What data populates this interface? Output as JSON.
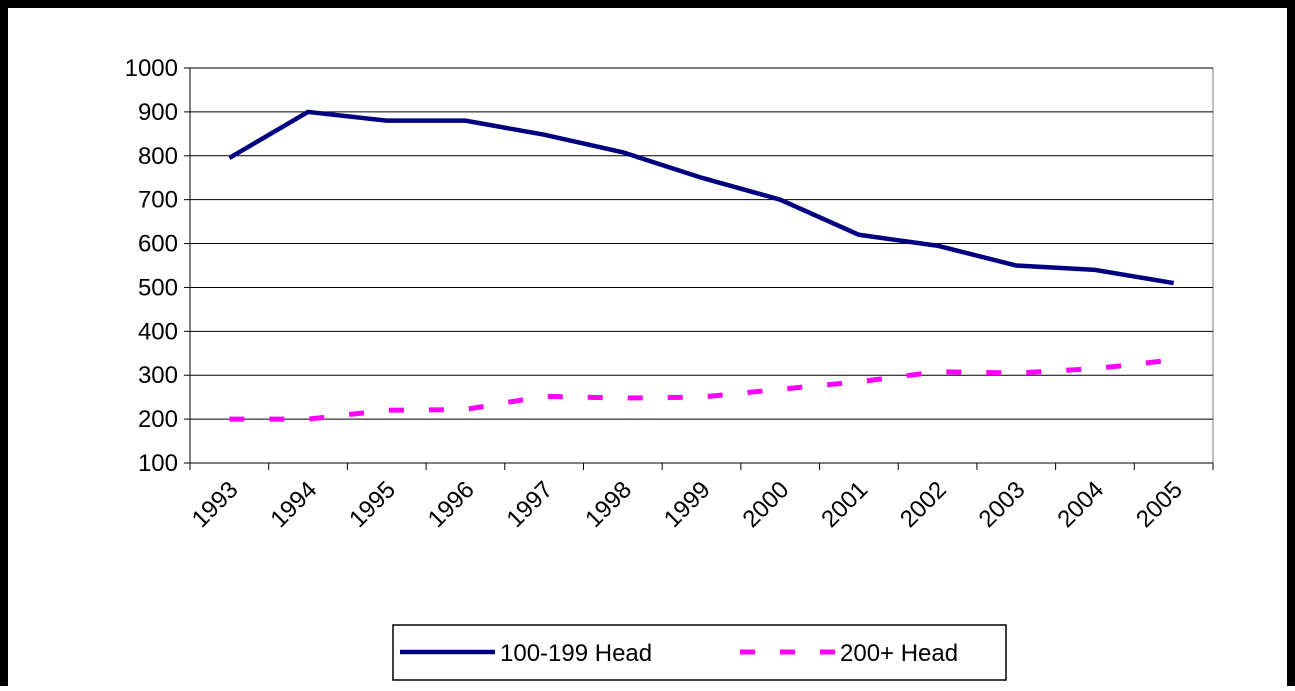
{
  "chart_data": {
    "type": "line",
    "categories": [
      "1993",
      "1994",
      "1995",
      "1996",
      "1997",
      "1998",
      "1999",
      "2000",
      "2001",
      "2002",
      "2003",
      "2004",
      "2005"
    ],
    "series": [
      {
        "name": "100-199 Head",
        "color": "#000080",
        "values": [
          795,
          900,
          880,
          880,
          848,
          808,
          750,
          700,
          620,
          595,
          550,
          540,
          510
        ]
      },
      {
        "name": "200+ Head",
        "color": "#ff00ff",
        "dashed": true,
        "values": [
          200,
          200,
          220,
          222,
          252,
          248,
          250,
          268,
          285,
          308,
          305,
          315,
          335
        ]
      }
    ],
    "ylim": [
      100,
      1000
    ],
    "yticks": [
      100,
      200,
      300,
      400,
      500,
      600,
      700,
      800,
      900,
      1000
    ],
    "grid": true
  }
}
